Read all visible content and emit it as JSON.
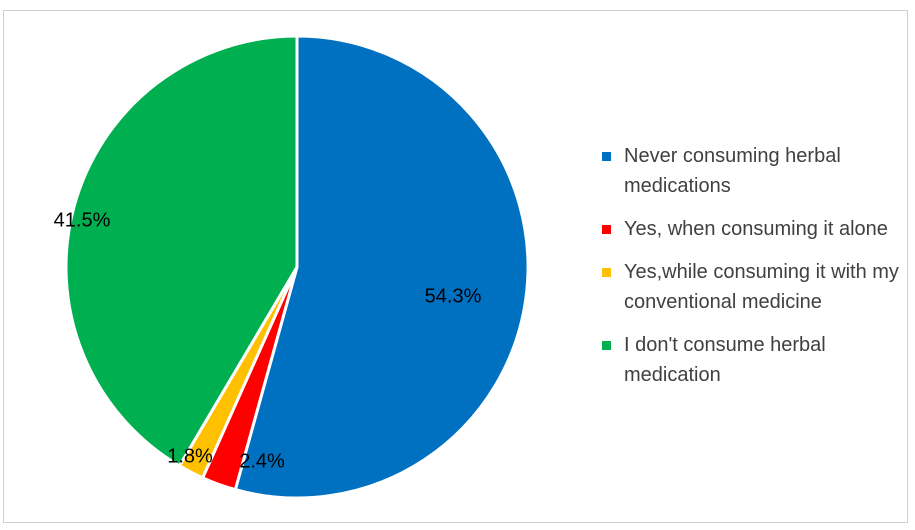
{
  "chart_data": {
    "type": "pie",
    "title": "",
    "slices": [
      {
        "label": "Never consuming herbal medications",
        "value": 54.3,
        "value_label": "54.3%",
        "color": "#0070C0"
      },
      {
        "label": "Yes, when consuming it alone",
        "value": 2.4,
        "value_label": "2.4%",
        "color": "#FF0000"
      },
      {
        "label": "Yes,while consuming it with my conventional medicine",
        "value": 1.8,
        "value_label": "1.8%",
        "color": "#FFC000"
      },
      {
        "label": "I don't consume herbal medication",
        "value": 41.5,
        "value_label": "41.5%",
        "color": "#00B050"
      }
    ],
    "legend_position": "right",
    "start_angle_direction": "clockwise-from-top"
  }
}
